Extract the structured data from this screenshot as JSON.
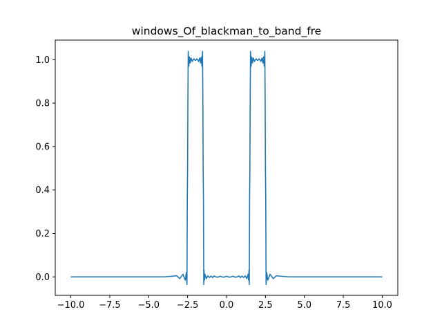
{
  "chart_data": {
    "type": "line",
    "title": "windows_Of_blackman_to_band_fre",
    "xlabel": "",
    "ylabel": "",
    "xlim": [
      -11.0,
      11.0
    ],
    "ylim": [
      -0.085,
      1.09
    ],
    "grid": false,
    "legend": null,
    "colors": {
      "line": "#1f77b4",
      "axes": "#000000",
      "background": "#ffffff"
    },
    "x_ticks": [
      {
        "value": -10.0,
        "label": "−10.0"
      },
      {
        "value": -7.5,
        "label": "−7.5"
      },
      {
        "value": -5.0,
        "label": "−5.0"
      },
      {
        "value": -2.5,
        "label": "−2.5"
      },
      {
        "value": 0.0,
        "label": "0.0"
      },
      {
        "value": 2.5,
        "label": "2.5"
      },
      {
        "value": 5.0,
        "label": "5.0"
      },
      {
        "value": 7.5,
        "label": "7.5"
      },
      {
        "value": 10.0,
        "label": "10.0"
      }
    ],
    "y_ticks": [
      {
        "value": 0.0,
        "label": "0.0"
      },
      {
        "value": 0.2,
        "label": "0.2"
      },
      {
        "value": 0.4,
        "label": "0.4"
      },
      {
        "value": 0.6,
        "label": "0.6"
      },
      {
        "value": 0.8,
        "label": "0.8"
      },
      {
        "value": 1.0,
        "label": "1.0"
      }
    ],
    "series": [
      {
        "x": [
          -10.0,
          -4.0,
          -3.2,
          -3.0,
          -2.8,
          -2.65,
          -2.58,
          -2.54,
          -2.52,
          -2.5,
          -2.48,
          -2.46,
          -2.42,
          -2.38,
          -2.33,
          -2.28,
          -2.2,
          -2.1,
          -2.0,
          -1.9,
          -1.8,
          -1.72,
          -1.67,
          -1.62,
          -1.58,
          -1.54,
          -1.52,
          -1.5,
          -1.48,
          -1.46,
          -1.44,
          -1.42,
          -1.38,
          -1.3,
          -1.2,
          -1.1,
          -1.0,
          -0.9,
          -0.8,
          -0.6,
          -0.4,
          -0.2,
          0.0,
          0.2,
          0.4,
          0.6,
          0.8,
          0.9,
          1.0,
          1.1,
          1.2,
          1.3,
          1.38,
          1.42,
          1.44,
          1.46,
          1.48,
          1.5,
          1.52,
          1.54,
          1.58,
          1.62,
          1.67,
          1.72,
          1.8,
          1.9,
          2.0,
          2.1,
          2.2,
          2.28,
          2.33,
          2.38,
          2.42,
          2.46,
          2.48,
          2.5,
          2.52,
          2.54,
          2.58,
          2.65,
          2.8,
          3.0,
          3.2,
          4.0,
          10.0
        ],
        "y": [
          0.0,
          0.0,
          0.005,
          -0.008,
          0.012,
          -0.015,
          0.02,
          -0.035,
          0.35,
          0.5,
          0.82,
          1.038,
          0.97,
          1.012,
          0.985,
          1.008,
          0.992,
          1.004,
          0.996,
          1.004,
          0.992,
          1.008,
          0.985,
          1.012,
          0.97,
          1.038,
          0.82,
          0.5,
          0.35,
          -0.035,
          0.03,
          -0.015,
          0.012,
          -0.008,
          0.005,
          -0.003,
          0.004,
          -0.003,
          0.004,
          -0.002,
          0.003,
          -0.002,
          0.003,
          -0.002,
          0.003,
          -0.002,
          0.004,
          -0.003,
          0.004,
          -0.003,
          0.005,
          -0.008,
          0.012,
          -0.015,
          0.03,
          -0.035,
          0.35,
          0.5,
          0.82,
          1.038,
          0.97,
          1.012,
          0.985,
          1.008,
          0.992,
          1.004,
          0.996,
          1.004,
          0.992,
          1.008,
          0.985,
          1.012,
          0.97,
          1.038,
          0.82,
          0.5,
          0.35,
          -0.035,
          0.02,
          -0.015,
          0.012,
          -0.008,
          0.005,
          0.0,
          0.0
        ]
      }
    ]
  }
}
